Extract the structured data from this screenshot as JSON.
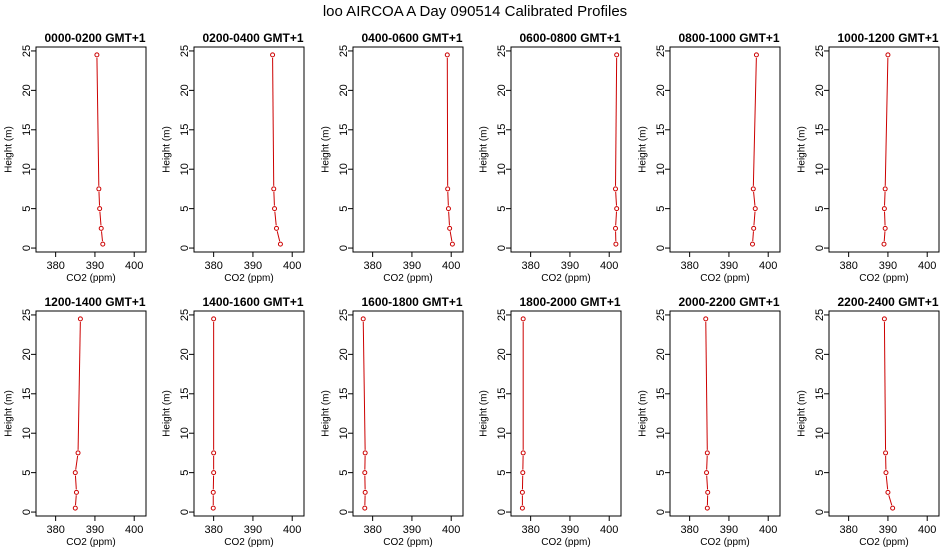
{
  "title": "loo AIRCOA A  Day 090514  Calibrated Profiles",
  "chart_data": {
    "type": "line",
    "layout": "2 rows x 6 columns, one profile per panel",
    "x_axis": {
      "label": "CO2 (ppm)",
      "lim": [
        375,
        403
      ],
      "ticks": [
        380,
        390,
        400
      ]
    },
    "y_axis": {
      "label": "Height (m)",
      "lim": [
        -0.5,
        25.5
      ],
      "ticks": [
        0,
        5,
        10,
        15,
        20,
        25
      ]
    },
    "heights": [
      0.5,
      2.5,
      5,
      7.5,
      24.5
    ],
    "color": "#cc0000",
    "panels": [
      {
        "title": "0000-0200  GMT+1",
        "co2": [
          392.0,
          391.6,
          391.2,
          391.0,
          390.5
        ]
      },
      {
        "title": "0200-0400  GMT+1",
        "co2": [
          397.0,
          396.0,
          395.5,
          395.3,
          395.0
        ]
      },
      {
        "title": "0400-0600  GMT+1",
        "co2": [
          400.3,
          399.6,
          399.3,
          399.1,
          399.0
        ]
      },
      {
        "title": "0600-0800  GMT+1",
        "co2": [
          401.7,
          401.6,
          401.9,
          401.6,
          401.9
        ]
      },
      {
        "title": "0800-1000  GMT+1",
        "co2": [
          396.0,
          396.3,
          396.7,
          396.2,
          397.0
        ]
      },
      {
        "title": "1000-1200  GMT+1",
        "co2": [
          389.0,
          389.3,
          389.1,
          389.3,
          390.0
        ]
      },
      {
        "title": "1200-1400  GMT+1",
        "co2": [
          385.0,
          385.3,
          385.0,
          385.7,
          386.3
        ]
      },
      {
        "title": "1400-1600  GMT+1",
        "co2": [
          379.9,
          379.9,
          380.0,
          380.0,
          380.0
        ]
      },
      {
        "title": "1600-1800  GMT+1",
        "co2": [
          378.0,
          378.1,
          378.0,
          378.1,
          377.6
        ]
      },
      {
        "title": "1800-2000  GMT+1",
        "co2": [
          377.9,
          377.9,
          378.0,
          378.1,
          378.1
        ]
      },
      {
        "title": "2000-2200  GMT+1",
        "co2": [
          384.5,
          384.6,
          384.3,
          384.5,
          384.1
        ]
      },
      {
        "title": "2200-2400  GMT+1",
        "co2": [
          391.2,
          390.0,
          389.5,
          389.4,
          389.1
        ]
      }
    ]
  }
}
